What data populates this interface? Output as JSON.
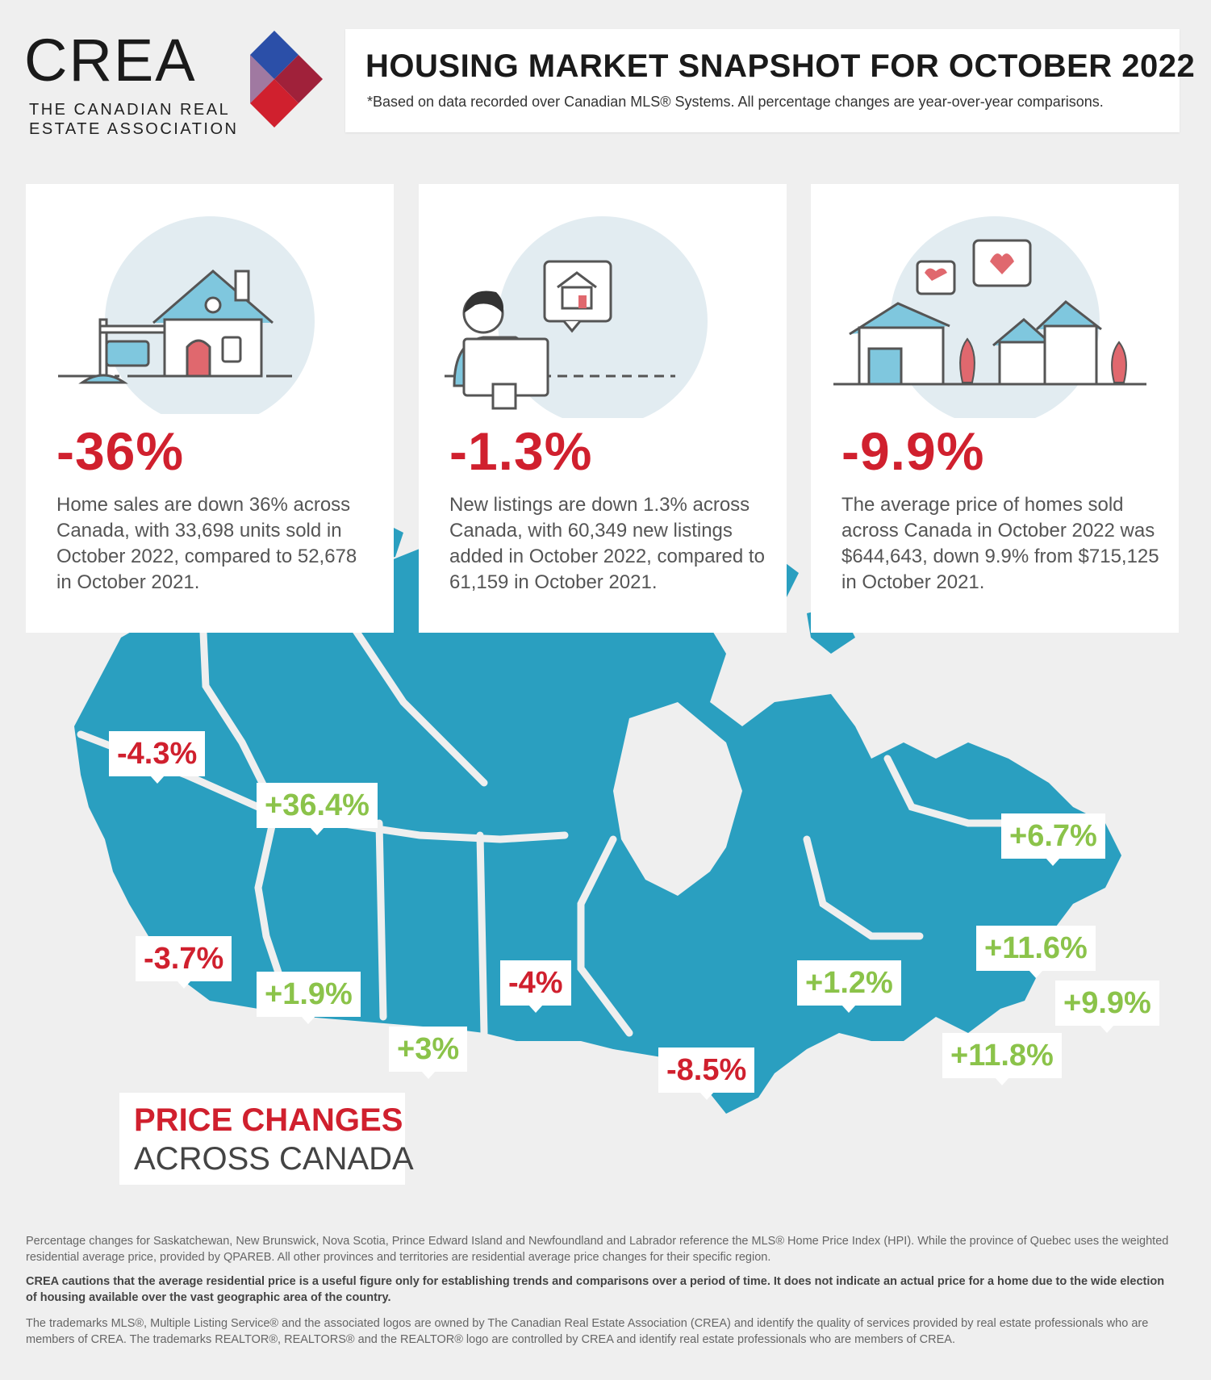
{
  "logo": {
    "wordmark": "CREA",
    "subtitle": "THE CANADIAN REAL ESTATE ASSOCIATION"
  },
  "header": {
    "title": "HOUSING MARKET SNAPSHOT FOR OCTOBER 2022",
    "subtitle": "*Based on data recorded over Canadian MLS® Systems. All percentage changes are year-over-year comparisons."
  },
  "cards": [
    {
      "icon": "house-for-sale-icon",
      "percent": "-36%",
      "description": "Home sales are down 36% across Canada, with 33,698 units sold in October 2022, compared to 52,678 in October 2021."
    },
    {
      "icon": "computer-listing-icon",
      "percent": "-1.3%",
      "description": "New listings are down 1.3% across Canada, with 60,349 new listings added in October 2022, compared to 61,159 in October 2021."
    },
    {
      "icon": "neighbourhood-icon",
      "percent": "-9.9%",
      "description": "The average price of homes sold across Canada in October 2022 was $644,643, down 9.9% from $715,125 in October 2021."
    }
  ],
  "map": {
    "title_line1": "PRICE CHANGES",
    "title_line2": "ACROSS CANADA",
    "regions": [
      {
        "value": "-4.3%",
        "trend": "down"
      },
      {
        "value": "+36.4%",
        "trend": "up"
      },
      {
        "value": "-3.7%",
        "trend": "down"
      },
      {
        "value": "+1.9%",
        "trend": "up"
      },
      {
        "value": "+3%",
        "trend": "up"
      },
      {
        "value": "-4%",
        "trend": "down"
      },
      {
        "value": "-8.5%",
        "trend": "down"
      },
      {
        "value": "+1.2%",
        "trend": "up"
      },
      {
        "value": "+6.7%",
        "trend": "up"
      },
      {
        "value": "+11.6%",
        "trend": "up"
      },
      {
        "value": "+9.9%",
        "trend": "up"
      },
      {
        "value": "+11.8%",
        "trend": "up"
      }
    ]
  },
  "colors": {
    "accent_red": "#d0202e",
    "positive_green": "#8bc34a",
    "map_blue": "#2a9fc0",
    "background": "#efefef"
  },
  "footer": {
    "note1": "Percentage changes for Saskatchewan, New Brunswick, Nova Scotia, Prince Edward Island and Newfoundland and Labrador reference the MLS® Home Price Index (HPI). While the province of Quebec uses the weighted residential average price, provided by QPAREB. All other provinces and territories are residential average price changes for their specific region.",
    "caution": "CREA cautions that the average residential price is a useful figure only for establishing trends and comparisons over a period of time. It does not indicate an actual price for a home due to the wide election of housing available over the vast geographic area of the country.",
    "trademark": "The trademarks MLS®, Multiple Listing Service® and the associated logos are owned by The Canadian Real Estate Association (CREA) and identify the quality of services provided by real estate professionals who are members of CREA. The trademarks REALTOR®, REALTORS® and the REALTOR® logo are controlled by CREA and identify real estate professionals who are members of CREA."
  }
}
